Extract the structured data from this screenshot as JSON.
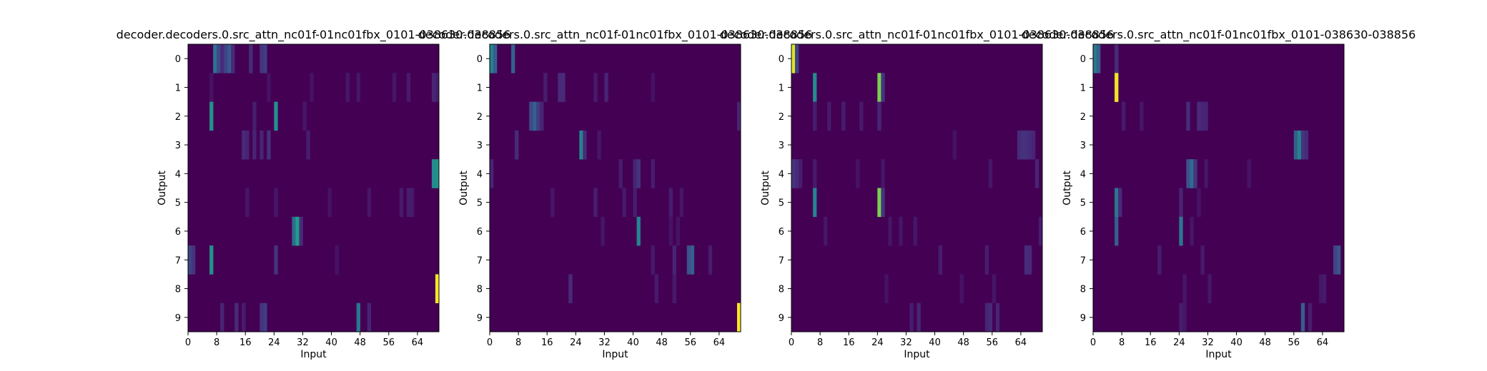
{
  "colormap": "viridis",
  "colors": {
    "low": "#440154",
    "mid": "#21918c",
    "high": "#fde725",
    "axis": "#000000"
  },
  "chart_data": [
    {
      "type": "heatmap",
      "title": "decoder.decoders.0.src_attn_nc01f-01nc01fbx_0101-038630-038856",
      "xlabel": "Input",
      "ylabel": "Output",
      "x_ticks": [
        0,
        8,
        16,
        24,
        32,
        40,
        48,
        56,
        64
      ],
      "y_ticks": [
        0,
        1,
        2,
        3,
        4,
        5,
        6,
        7,
        8,
        9
      ],
      "xlim": [
        0,
        70
      ],
      "rows": 10,
      "cols": 70,
      "cells": [
        [
          0,
          7,
          0.38
        ],
        [
          0,
          8,
          0.22
        ],
        [
          0,
          9,
          0.12
        ],
        [
          0,
          10,
          0.2
        ],
        [
          0,
          11,
          0.28
        ],
        [
          0,
          12,
          0.12
        ],
        [
          0,
          17,
          0.12
        ],
        [
          0,
          20,
          0.15
        ],
        [
          0,
          21,
          0.18
        ],
        [
          1,
          6,
          0.05
        ],
        [
          1,
          22,
          0.05
        ],
        [
          1,
          34,
          0.05
        ],
        [
          1,
          44,
          0.06
        ],
        [
          1,
          47,
          0.06
        ],
        [
          1,
          57,
          0.06
        ],
        [
          1,
          61,
          0.07
        ],
        [
          1,
          68,
          0.1
        ],
        [
          1,
          69,
          0.08
        ],
        [
          2,
          6,
          0.5
        ],
        [
          2,
          18,
          0.08
        ],
        [
          2,
          24,
          0.5
        ],
        [
          2,
          32,
          0.06
        ],
        [
          3,
          15,
          0.12
        ],
        [
          3,
          16,
          0.1
        ],
        [
          3,
          18,
          0.1
        ],
        [
          3,
          20,
          0.1
        ],
        [
          3,
          22,
          0.14
        ],
        [
          3,
          33,
          0.08
        ],
        [
          4,
          68,
          0.48
        ],
        [
          4,
          69,
          0.5
        ],
        [
          5,
          16,
          0.06
        ],
        [
          5,
          24,
          0.06
        ],
        [
          5,
          39,
          0.05
        ],
        [
          5,
          50,
          0.06
        ],
        [
          5,
          59,
          0.07
        ],
        [
          5,
          61,
          0.08
        ],
        [
          5,
          62,
          0.07
        ],
        [
          6,
          29,
          0.35
        ],
        [
          6,
          30,
          0.55
        ],
        [
          6,
          31,
          0.12
        ],
        [
          7,
          0,
          0.2
        ],
        [
          7,
          1,
          0.15
        ],
        [
          7,
          6,
          0.5
        ],
        [
          7,
          24,
          0.15
        ],
        [
          7,
          41,
          0.05
        ],
        [
          8,
          69,
          1.0
        ],
        [
          9,
          9,
          0.1
        ],
        [
          9,
          13,
          0.12
        ],
        [
          9,
          15,
          0.08
        ],
        [
          9,
          20,
          0.15
        ],
        [
          9,
          21,
          0.18
        ],
        [
          9,
          47,
          0.4
        ],
        [
          9,
          50,
          0.1
        ]
      ]
    },
    {
      "type": "heatmap",
      "title": "decoder.decoders.0.src_attn_nc01f-01nc01fbx_0101-038630-038856",
      "xlabel": "Input",
      "ylabel": "Output",
      "x_ticks": [
        0,
        8,
        16,
        24,
        32,
        40,
        48,
        56,
        64
      ],
      "y_ticks": [
        0,
        1,
        2,
        3,
        4,
        5,
        6,
        7,
        8,
        9
      ],
      "xlim": [
        0,
        70
      ],
      "rows": 10,
      "cols": 70,
      "cells": [
        [
          0,
          0,
          0.45
        ],
        [
          0,
          1,
          0.3
        ],
        [
          0,
          6,
          0.3
        ],
        [
          1,
          15,
          0.08
        ],
        [
          1,
          19,
          0.12
        ],
        [
          1,
          20,
          0.12
        ],
        [
          1,
          29,
          0.07
        ],
        [
          1,
          32,
          0.1
        ],
        [
          1,
          45,
          0.05
        ],
        [
          2,
          11,
          0.22
        ],
        [
          2,
          12,
          0.3
        ],
        [
          2,
          13,
          0.18
        ],
        [
          2,
          14,
          0.1
        ],
        [
          2,
          69,
          0.1
        ],
        [
          3,
          7,
          0.12
        ],
        [
          3,
          25,
          0.45
        ],
        [
          3,
          26,
          0.12
        ],
        [
          3,
          30,
          0.06
        ],
        [
          4,
          0,
          0.1
        ],
        [
          4,
          36,
          0.08
        ],
        [
          4,
          40,
          0.1
        ],
        [
          4,
          41,
          0.15
        ],
        [
          4,
          45,
          0.08
        ],
        [
          5,
          17,
          0.06
        ],
        [
          5,
          29,
          0.08
        ],
        [
          5,
          37,
          0.07
        ],
        [
          5,
          40,
          0.08
        ],
        [
          5,
          50,
          0.08
        ],
        [
          5,
          53,
          0.06
        ],
        [
          6,
          31,
          0.06
        ],
        [
          6,
          41,
          0.45
        ],
        [
          6,
          50,
          0.05
        ],
        [
          6,
          52,
          0.05
        ],
        [
          7,
          45,
          0.07
        ],
        [
          7,
          51,
          0.1
        ],
        [
          7,
          55,
          0.25
        ],
        [
          7,
          56,
          0.3
        ],
        [
          7,
          61,
          0.08
        ],
        [
          8,
          22,
          0.12
        ],
        [
          8,
          46,
          0.07
        ],
        [
          8,
          51,
          0.07
        ],
        [
          9,
          69,
          1.0
        ]
      ]
    },
    {
      "type": "heatmap",
      "title": "decoder.decoders.0.src_attn_nc01f-01nc01fbx_0101-038630-038856",
      "xlabel": "Input",
      "ylabel": "Output",
      "x_ticks": [
        0,
        8,
        16,
        24,
        32,
        40,
        48,
        56,
        64
      ],
      "y_ticks": [
        0,
        1,
        2,
        3,
        4,
        5,
        6,
        7,
        8,
        9
      ],
      "xlim": [
        0,
        70
      ],
      "rows": 10,
      "cols": 70,
      "cells": [
        [
          0,
          0,
          0.95
        ],
        [
          0,
          1,
          0.2
        ],
        [
          1,
          6,
          0.48
        ],
        [
          1,
          24,
          0.8
        ],
        [
          1,
          25,
          0.15
        ],
        [
          2,
          6,
          0.08
        ],
        [
          2,
          10,
          0.07
        ],
        [
          2,
          14,
          0.08
        ],
        [
          2,
          19,
          0.07
        ],
        [
          2,
          24,
          0.1
        ],
        [
          3,
          45,
          0.05
        ],
        [
          3,
          63,
          0.12
        ],
        [
          3,
          64,
          0.14
        ],
        [
          3,
          65,
          0.14
        ],
        [
          3,
          66,
          0.12
        ],
        [
          3,
          67,
          0.1
        ],
        [
          4,
          0,
          0.15
        ],
        [
          4,
          1,
          0.12
        ],
        [
          4,
          2,
          0.08
        ],
        [
          4,
          6,
          0.07
        ],
        [
          4,
          18,
          0.05
        ],
        [
          4,
          25,
          0.06
        ],
        [
          4,
          55,
          0.06
        ],
        [
          4,
          68,
          0.1
        ],
        [
          5,
          6,
          0.45
        ],
        [
          5,
          24,
          0.8
        ],
        [
          5,
          25,
          0.15
        ],
        [
          6,
          9,
          0.06
        ],
        [
          6,
          27,
          0.06
        ],
        [
          6,
          30,
          0.06
        ],
        [
          6,
          34,
          0.06
        ],
        [
          6,
          69,
          0.08
        ],
        [
          7,
          41,
          0.08
        ],
        [
          7,
          54,
          0.08
        ],
        [
          7,
          65,
          0.12
        ],
        [
          7,
          66,
          0.12
        ],
        [
          8,
          26,
          0.05
        ],
        [
          8,
          47,
          0.05
        ],
        [
          8,
          56,
          0.06
        ],
        [
          9,
          33,
          0.08
        ],
        [
          9,
          35,
          0.1
        ],
        [
          9,
          54,
          0.1
        ],
        [
          9,
          55,
          0.12
        ],
        [
          9,
          57,
          0.1
        ]
      ]
    },
    {
      "type": "heatmap",
      "title": "decoder.decoders.0.src_attn_nc01f-01nc01fbx_0101-038630-038856",
      "xlabel": "Input",
      "ylabel": "Output",
      "x_ticks": [
        0,
        8,
        16,
        24,
        32,
        40,
        48,
        56,
        64
      ],
      "y_ticks": [
        0,
        1,
        2,
        3,
        4,
        5,
        6,
        7,
        8,
        9
      ],
      "xlim": [
        0,
        70
      ],
      "rows": 10,
      "cols": 70,
      "cells": [
        [
          0,
          0,
          0.4
        ],
        [
          0,
          1,
          0.3
        ],
        [
          0,
          6,
          0.12
        ],
        [
          1,
          6,
          0.98
        ],
        [
          2,
          8,
          0.07
        ],
        [
          2,
          13,
          0.06
        ],
        [
          2,
          26,
          0.12
        ],
        [
          2,
          29,
          0.12
        ],
        [
          2,
          30,
          0.1
        ],
        [
          2,
          31,
          0.1
        ],
        [
          3,
          56,
          0.3
        ],
        [
          3,
          57,
          0.45
        ],
        [
          3,
          58,
          0.15
        ],
        [
          3,
          59,
          0.12
        ],
        [
          4,
          26,
          0.25
        ],
        [
          4,
          27,
          0.35
        ],
        [
          4,
          28,
          0.15
        ],
        [
          4,
          31,
          0.06
        ],
        [
          4,
          43,
          0.05
        ],
        [
          5,
          6,
          0.4
        ],
        [
          5,
          7,
          0.12
        ],
        [
          5,
          24,
          0.1
        ],
        [
          5,
          29,
          0.05
        ],
        [
          6,
          6,
          0.3
        ],
        [
          6,
          24,
          0.4
        ],
        [
          6,
          27,
          0.06
        ],
        [
          7,
          18,
          0.08
        ],
        [
          7,
          30,
          0.07
        ],
        [
          7,
          67,
          0.2
        ],
        [
          7,
          68,
          0.25
        ],
        [
          8,
          25,
          0.06
        ],
        [
          8,
          32,
          0.06
        ],
        [
          8,
          63,
          0.06
        ],
        [
          8,
          64,
          0.07
        ],
        [
          9,
          24,
          0.08
        ],
        [
          9,
          25,
          0.06
        ],
        [
          9,
          58,
          0.3
        ],
        [
          9,
          60,
          0.08
        ]
      ]
    }
  ]
}
